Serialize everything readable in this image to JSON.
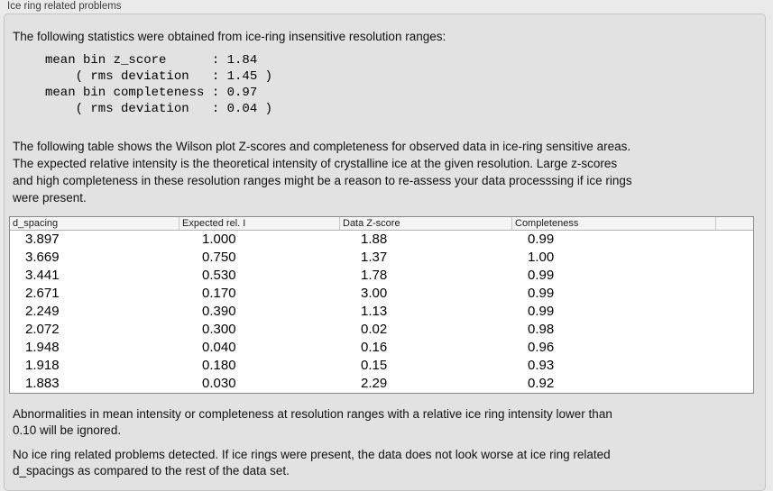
{
  "panel": {
    "title": "Ice ring related problems"
  },
  "intro": "The following statistics were obtained from ice-ring insensitive resolution ranges:",
  "stats_block": "mean bin z_score      : 1.84\n    ( rms deviation   : 1.45 )\nmean bin completeness : 0.97\n    ( rms deviation   : 0.04 )",
  "stats": {
    "mean_bin_z_score": "1.84",
    "z_score_rms_deviation": "1.45",
    "mean_bin_completeness": "0.97",
    "completeness_rms_deviation": "0.04"
  },
  "description": "The following table shows the Wilson plot Z-scores and completeness for observed data in ice-ring sensitive areas.\nThe expected relative intensity is the theoretical intensity of crystalline ice at the given resolution. Large z-scores\nand high completeness in these resolution ranges might be a reason to re-assess your data processsing if ice rings\nwere present.",
  "table": {
    "columns": [
      "d_spacing",
      "Expected rel. I",
      "Data Z-score",
      "Completeness"
    ],
    "rows": [
      [
        "3.897",
        "1.000",
        "1.88",
        "0.99"
      ],
      [
        "3.669",
        "0.750",
        "1.37",
        "1.00"
      ],
      [
        "3.441",
        "0.530",
        "1.78",
        "0.99"
      ],
      [
        "2.671",
        "0.170",
        "3.00",
        "0.99"
      ],
      [
        "2.249",
        "0.390",
        "1.13",
        "0.99"
      ],
      [
        "2.072",
        "0.300",
        "0.02",
        "0.98"
      ],
      [
        "1.948",
        "0.040",
        "0.16",
        "0.96"
      ],
      [
        "1.918",
        "0.180",
        "0.15",
        "0.93"
      ],
      [
        "1.883",
        "0.030",
        "2.29",
        "0.92"
      ]
    ]
  },
  "note_ignore": "Abnormalities in mean intensity or completeness at resolution ranges with a relative ice ring intensity lower than\n0.10 will be ignored.",
  "conclusion": "No ice ring related problems detected. If ice rings were present, the data does not look worse at ice ring related\nd_spacings as compared to the rest of the data set.",
  "colors": {
    "window_background": "#eaeaea",
    "panel_background": "#e2e2e2",
    "panel_border": "#c5c5c5",
    "table_border": "#8a8a8a",
    "table_header_background": "#f5f5f5",
    "text": "#111111"
  }
}
